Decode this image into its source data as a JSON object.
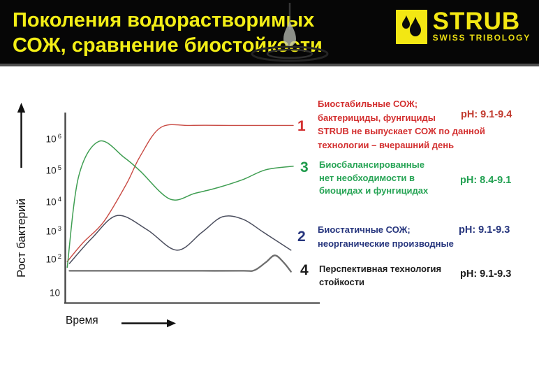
{
  "header": {
    "title_line1": "Поколения водорастворимых",
    "title_line2": "СОЖ, сравнение биостойкости",
    "logo": {
      "name": "STRUB",
      "tagline": "SWISS TRIBOLOGY"
    },
    "colors": {
      "background": "#060606",
      "title_yellow": "#f3ee16",
      "logo_yellow": "#f3e713"
    }
  },
  "chart": {
    "ylabel": "Рост бактерий",
    "xlabel": "Время",
    "y_ticks": [
      {
        "base": "10",
        "exp": "6"
      },
      {
        "base": "10",
        "exp": "5"
      },
      {
        "base": "10",
        "exp": "4"
      },
      {
        "base": "10",
        "exp": "3"
      },
      {
        "base": "10",
        "exp": "2"
      },
      {
        "base": "10",
        "exp": ""
      }
    ]
  },
  "chart_data": {
    "type": "line",
    "title": "",
    "xlabel": "Время",
    "ylabel": "Рост бактерий",
    "x_axis": "relative time 0-100 (unlabeled axis, arrow only)",
    "y_scale": "log10",
    "ylim": [
      10,
      3000000
    ],
    "y_tick_labels": [
      "10^6",
      "10^5",
      "10^4",
      "10^3",
      "10^2",
      "10"
    ],
    "grid": false,
    "legend_position": "right, numbered curve labels",
    "series": [
      {
        "name": "1",
        "label": "Биостабильные СОЖ",
        "color": "#c94b44",
        "width": 1.4,
        "points": [
          [
            1,
            100
          ],
          [
            8,
            420
          ],
          [
            17,
            2000
          ],
          [
            27,
            35000
          ],
          [
            33,
            280000
          ],
          [
            42,
            2400000
          ],
          [
            55,
            2800000
          ],
          [
            75,
            2800000
          ],
          [
            100,
            2800000
          ]
        ]
      },
      {
        "name": "3",
        "label": "Биосбалансированные",
        "color": "#3f9e52",
        "width": 1.5,
        "points": [
          [
            1,
            65
          ],
          [
            6,
            60000
          ],
          [
            15,
            850000
          ],
          [
            26,
            250000
          ],
          [
            33,
            90000
          ],
          [
            46,
            11000
          ],
          [
            57,
            17000
          ],
          [
            67,
            26000
          ],
          [
            78,
            48000
          ],
          [
            88,
            100000
          ],
          [
            100,
            130000
          ]
        ]
      },
      {
        "name": "2",
        "label": "Биостатичные СОЖ",
        "color": "#4b4e5e",
        "width": 1.5,
        "points": [
          [
            2,
            87
          ],
          [
            12,
            600
          ],
          [
            23,
            3200
          ],
          [
            36,
            1100
          ],
          [
            49,
            235
          ],
          [
            60,
            900
          ],
          [
            69,
            2900
          ],
          [
            78,
            2400
          ],
          [
            87,
            900
          ],
          [
            99,
            235
          ]
        ]
      },
      {
        "name": "4",
        "label": "Перспективная технология стойкости",
        "color": "#6e6e6e",
        "width": 2.3,
        "points": [
          [
            2,
            50
          ],
          [
            20,
            50
          ],
          [
            40,
            50
          ],
          [
            60,
            50
          ],
          [
            78,
            50
          ],
          [
            83,
            52
          ],
          [
            88,
            95
          ],
          [
            92,
            160
          ],
          [
            96,
            90
          ],
          [
            99,
            47
          ]
        ]
      }
    ]
  },
  "legend": {
    "items": [
      {
        "number": "1",
        "lines": [
          "Биостабильные СОЖ;",
          "бактерициды, фунгициды",
          "STRUB не выпускает СОЖ по данной",
          "технологии – вчерашний день"
        ],
        "ph": "pH: 9.1-9.4",
        "color": "#d32f2f"
      },
      {
        "number": "3",
        "lines": [
          "Биосбалансированные",
          "нет необходимости в",
          "биоцидах и фунгицидах"
        ],
        "ph": "pH: 8.4-9.1",
        "color": "#27a455"
      },
      {
        "number": "2",
        "lines": [
          "Биостатичные СОЖ;",
          "неорганические производные"
        ],
        "ph": "pH: 9.1-9.3",
        "color": "#26357d"
      },
      {
        "number": "4",
        "lines": [
          "Перспективная технология",
          "стойкости"
        ],
        "ph": "pH: 9.1-9.3",
        "color": "#1d1d1d"
      }
    ]
  }
}
